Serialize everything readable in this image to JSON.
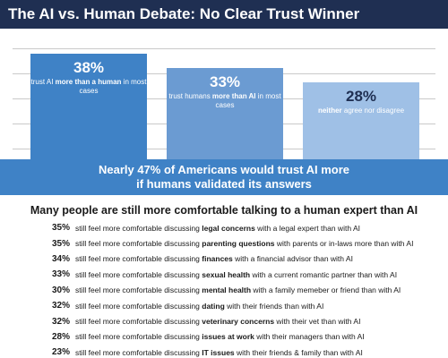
{
  "title": "The AI vs. Human Debate: No Clear Trust Winner",
  "chart_data": {
    "type": "bar",
    "categories": [
      "trust AI more than a human in most cases",
      "trust humans more than AI in most cases",
      "neither agree nor disagree"
    ],
    "values": [
      38,
      33,
      28
    ],
    "ylim": [
      0,
      45
    ],
    "grid": true,
    "colors": [
      "#3f82c6",
      "#6b9bd2",
      "#9fc0e6"
    ],
    "bars": [
      {
        "pct": "38%",
        "pre": "trust AI ",
        "bold": "more than a human",
        "post": " in most cases"
      },
      {
        "pct": "33%",
        "pre": "trust humans ",
        "bold": "more than AI",
        "post": " in most cases"
      },
      {
        "pct": "28%",
        "pre": "",
        "bold": "neither",
        "post": " agree nor disagree"
      }
    ]
  },
  "banner": {
    "line1": "Nearly 47% of Americans would trust AI more",
    "line2": "if humans validated its answers"
  },
  "subhead": "Many people are still more comfortable talking to a human expert than AI",
  "list": [
    {
      "pct": "35%",
      "pre": "still feel more comfortable discussing ",
      "bold": "legal concerns",
      "post": " with a legal expert than with AI"
    },
    {
      "pct": "35%",
      "pre": "still feel more comfortable discussing ",
      "bold": "parenting questions",
      "post": " with parents or in-laws more than with AI"
    },
    {
      "pct": "34%",
      "pre": "still feel more comfortable discussing ",
      "bold": "finances",
      "post": " with a financial advisor than with AI"
    },
    {
      "pct": "33%",
      "pre": "still feel more comfortable discussing ",
      "bold": "sexual health",
      "post": " with a current romantic partner than with AI"
    },
    {
      "pct": "30%",
      "pre": "still feel more comfortable discussing ",
      "bold": "mental health",
      "post": " with a family memeber or friend than with AI"
    },
    {
      "pct": "32%",
      "pre": "still feel more comfortable discussing ",
      "bold": "dating",
      "post": " with their friends than with AI"
    },
    {
      "pct": "32%",
      "pre": "still feel more comfortable discussing ",
      "bold": "veterinary concerns",
      "post": " with their vet than with AI"
    },
    {
      "pct": "28%",
      "pre": "still feel more comfortable discussing ",
      "bold": "issues at work",
      "post": " with their managers than with AI"
    },
    {
      "pct": "23%",
      "pre": "still feel more comfortable discussing ",
      "bold": "IT issues",
      "post": " with their friends & family than with AI"
    }
  ]
}
